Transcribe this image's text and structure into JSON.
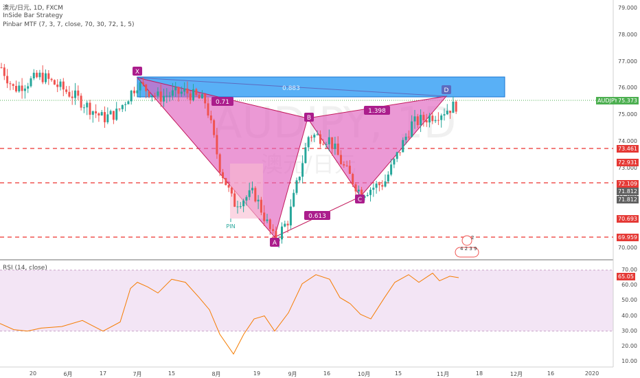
{
  "header": {
    "symbol_line": "澳元/日元, 1D, FXCM",
    "indicator_1": "InSide Bar Strategy",
    "indicator_2": "Pinbar MTF (7, 3, 7, close, 70, 30, 72, 1, 5)",
    "watermark_symbol": "AUDJPY, 1D",
    "watermark_name": "澳元/日元"
  },
  "price_axis": {
    "labels": [
      "79.000",
      "78.000",
      "77.000",
      "76.000",
      "75.000",
      "74.000",
      "73.000",
      "72.000",
      "71.000",
      "70.000"
    ],
    "tags": [
      {
        "text": "AUDJPY",
        "color": "#4caf50",
        "kind": "symbol"
      },
      {
        "text": "75.373",
        "color": "#4caf50",
        "kind": "last"
      },
      {
        "text": "73.461",
        "color": "#e53935"
      },
      {
        "text": "72.931",
        "color": "#e53935"
      },
      {
        "text": "72.109",
        "color": "#e53935"
      },
      {
        "text": "71.812",
        "color": "#616161"
      },
      {
        "text": "71.812",
        "color": "#616161"
      },
      {
        "text": "70.693",
        "color": "#e53935"
      },
      {
        "text": "69.959",
        "color": "#e53935"
      }
    ]
  },
  "pattern": {
    "points": [
      "X",
      "A",
      "B",
      "C",
      "D"
    ],
    "ratios": [
      "0.71",
      "1.398",
      "0.613",
      "0.883"
    ],
    "pin_label": "PIN",
    "event_icons": [
      "2",
      "4 2 3 9"
    ]
  },
  "rsi": {
    "legend": "RSI (14, close)",
    "labels": [
      "70.00",
      "60.00",
      "50.00",
      "40.00",
      "30.00",
      "20.00",
      "10.00"
    ],
    "value": "65.05",
    "value_color": "#e53935"
  },
  "time_axis": {
    "labels": [
      "20",
      "6月",
      "17",
      "7月",
      "15",
      "8月",
      "19",
      "9月",
      "16",
      "10月",
      "15",
      "11月",
      "18",
      "12月",
      "16",
      "2020"
    ]
  },
  "colors": {
    "up": "#26a69a",
    "down": "#ef5350",
    "pattern_fill": "#e062be",
    "zone": "#2196f3",
    "rsi_line": "#f57c00",
    "rsi_band": "#f3e5f5"
  }
}
